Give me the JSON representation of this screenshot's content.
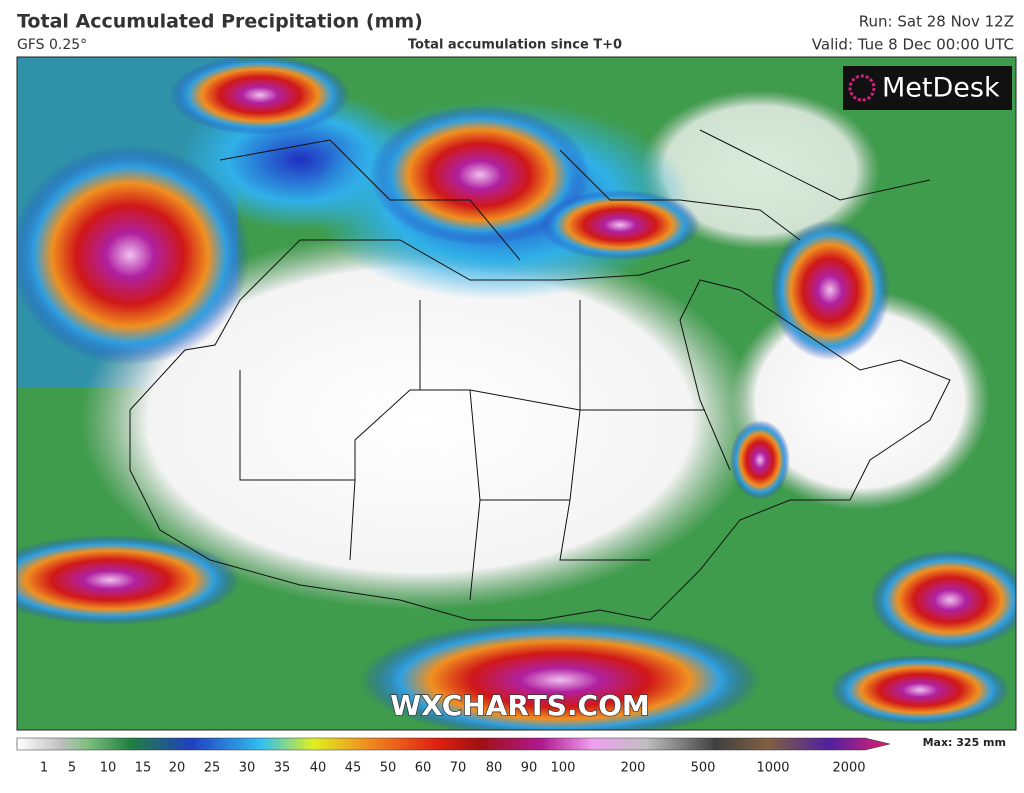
{
  "header": {
    "title": "Total Accumulated Precipitation (mm)",
    "model": "GFS 0.25°",
    "subtitle": "Total accumulation since T+0",
    "run": "Run: Sat 28 Nov 12Z",
    "valid": "Valid: Tue 8 Dec 00:00 UTC"
  },
  "logo": "MetDesk",
  "watermark": "WXCHARTS.COM",
  "colorbar": {
    "labels": [
      "1",
      "5",
      "10",
      "15",
      "20",
      "25",
      "30",
      "35",
      "40",
      "45",
      "50",
      "60",
      "70",
      "80",
      "90",
      "100",
      "200",
      "500",
      "1000",
      "2000"
    ],
    "max": "Max: 325 mm"
  }
}
